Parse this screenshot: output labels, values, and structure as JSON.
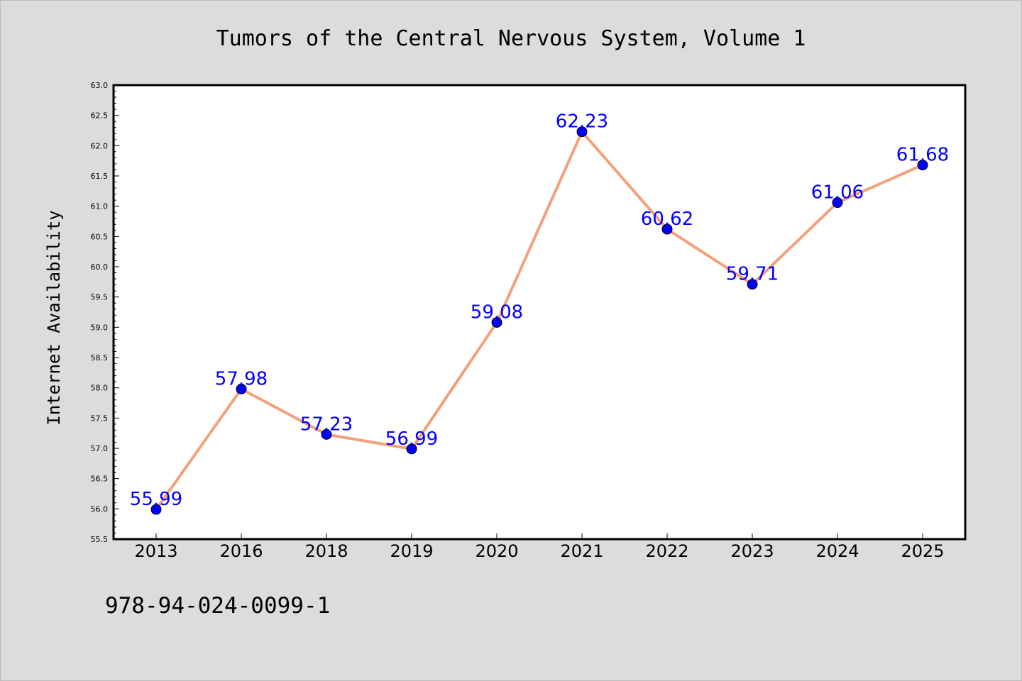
{
  "chart_data": {
    "type": "line",
    "title": "Tumors of the Central Nervous System, Volume 1",
    "xlabel": "",
    "ylabel": "Internet Availability",
    "categories": [
      "2013",
      "2016",
      "2018",
      "2019",
      "2020",
      "2021",
      "2022",
      "2023",
      "2024",
      "2025"
    ],
    "series": [
      {
        "values": [
          55.99,
          57.98,
          57.23,
          56.99,
          59.08,
          62.23,
          60.62,
          59.71,
          61.06,
          61.68
        ],
        "data_labels": [
          "55.99",
          "57.98",
          "57.23",
          "56.99",
          "59.08",
          "62.23",
          "60.62",
          "59.71",
          "61.06",
          "61.68"
        ]
      }
    ],
    "ylim": [
      55.5,
      63.0
    ],
    "yticks": [
      "55.5",
      "56.0",
      "56.5",
      "57.0",
      "57.5",
      "58.0",
      "58.5",
      "59.0",
      "59.5",
      "60.0",
      "60.5",
      "61.0",
      "61.5",
      "62.0",
      "62.5",
      "63.0"
    ],
    "grid": false,
    "legend": "none",
    "colors": {
      "line": "#f4a07a",
      "marker": "#0000ff",
      "data_label": "#0000ff",
      "background": "#dcdcdc",
      "plot_background": "#ffffff"
    }
  },
  "footer": {
    "text": "978-94-024-0099-1"
  }
}
